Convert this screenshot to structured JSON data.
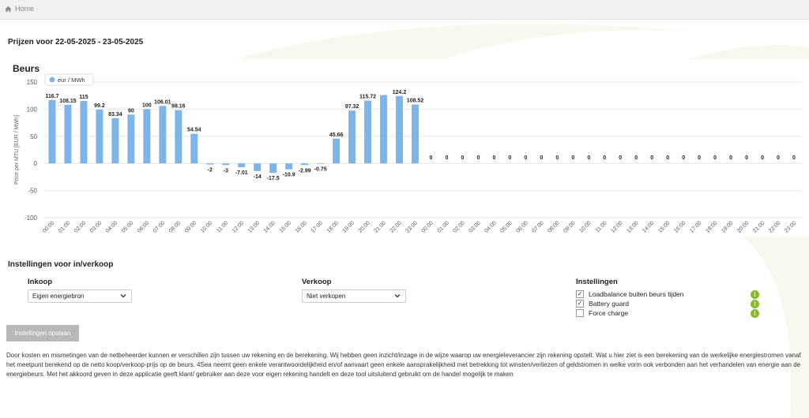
{
  "breadcrumb": {
    "home": "Home"
  },
  "period_title": "Prijzen voor 22-05-2025 - 23-05-2025",
  "chart_heading": "Beurs",
  "chart_data": {
    "type": "bar",
    "legend": "eur / MWh",
    "ylabel": "Price per MTU [EUR / MWh]",
    "ylim": [
      -100,
      150
    ],
    "yticks": [
      150,
      100,
      50,
      0,
      -50,
      -100
    ],
    "grid": true,
    "legend_position": "top-left",
    "color": "#7cb5ec",
    "categories": [
      "00:00",
      "01:00",
      "02:00",
      "03:00",
      "04:00",
      "05:00",
      "06:00",
      "07:00",
      "08:00",
      "09:00",
      "10:00",
      "11:00",
      "12:00",
      "13:00",
      "14:00",
      "15:00",
      "16:00",
      "17:00",
      "18:00",
      "19:00",
      "20:00",
      "21:00",
      "22:00",
      "23:00",
      "00:00",
      "01:00",
      "02:00",
      "03:00",
      "04:00",
      "05:00",
      "06:00",
      "07:00",
      "08:00",
      "09:00",
      "10:00",
      "11:00",
      "12:00",
      "13:00",
      "14:00",
      "15:00",
      "16:00",
      "17:00",
      "18:00",
      "19:00",
      "20:00",
      "21:00",
      "22:00",
      "23:00"
    ],
    "values": [
      116.7,
      108.15,
      115,
      99.2,
      83.34,
      90,
      100,
      106.01,
      98.16,
      54.54,
      -2,
      -3,
      -7.01,
      -14,
      -17.5,
      -10.9,
      -2.99,
      -0.75,
      45.66,
      97.32,
      115.72,
      126,
      124.2,
      108.52,
      0,
      0,
      0,
      0,
      0,
      0,
      0,
      0,
      0,
      0,
      0,
      0,
      0,
      0,
      0,
      0,
      0,
      0,
      0,
      0,
      0,
      0,
      0,
      0
    ],
    "labels": [
      "116.7",
      "108.15",
      "115",
      "99.2",
      "83.34",
      "90",
      "100",
      "106.01",
      "98.16",
      "54.54",
      "-2",
      "-3",
      "-7.01",
      "-14",
      "-17.5",
      "-10.9",
      "-2.99",
      "-0.75",
      "45.66",
      "97.32",
      "115.72",
      "",
      "124.2",
      "108.52",
      "0",
      "0",
      "0",
      "0",
      "0",
      "0",
      "0",
      "0",
      "0",
      "0",
      "0",
      "0",
      "0",
      "0",
      "0",
      "0",
      "0",
      "0",
      "0",
      "0",
      "0",
      "0",
      "0",
      "0"
    ]
  },
  "settings": {
    "title": "Instellingen voor in/verkoop",
    "inkoop_label": "Inkoop",
    "inkoop_value": "Eigen energiebron",
    "verkoop_label": "Verkoop",
    "verkoop_value": "Niet verkopen",
    "instellingen_label": "Instellingen",
    "options": [
      {
        "label": "Loadbalance buiten beurs tijden",
        "checked": true
      },
      {
        "label": "Battery guard",
        "checked": true
      },
      {
        "label": "Force charge",
        "checked": false
      }
    ],
    "info_symbol": "i",
    "save_label": "Instellingen opslaan"
  },
  "disclaimer": "Door kosten en mismetingen van de netbeheerder kunnen er verschillen zijn tussen uw rekening en de berekening. Wij hebben geen inzicht/inzage in de wijze waarop uw energieleverancier zijn rekening opstelt. Wat u hier ziet is een berekening van de werkelijke energiestromen vanaf het meetpunt berekend op de netto koop/verkoop-prijs op de beurs. 4Sea neemt geen enkele verantwoordelijkheid en/of aanvaart geen enkele aansprakelijkheid met betrekking tot winsten/verliezen of geldstromen in welke vorm ook verbonden aan het verhandelen van energie aan de energiebeurs. Met het akkoord geven in deze applicatie geeft klant/ gebruiker aan deze voor eigen rekening handelt en deze tool uitsluitend gebruikt om de handel mogelijk te maken",
  "colors": {
    "accent_green": "#8ab832",
    "bar_blue": "#7cb5ec",
    "button_grey": "#b8b8b8"
  }
}
